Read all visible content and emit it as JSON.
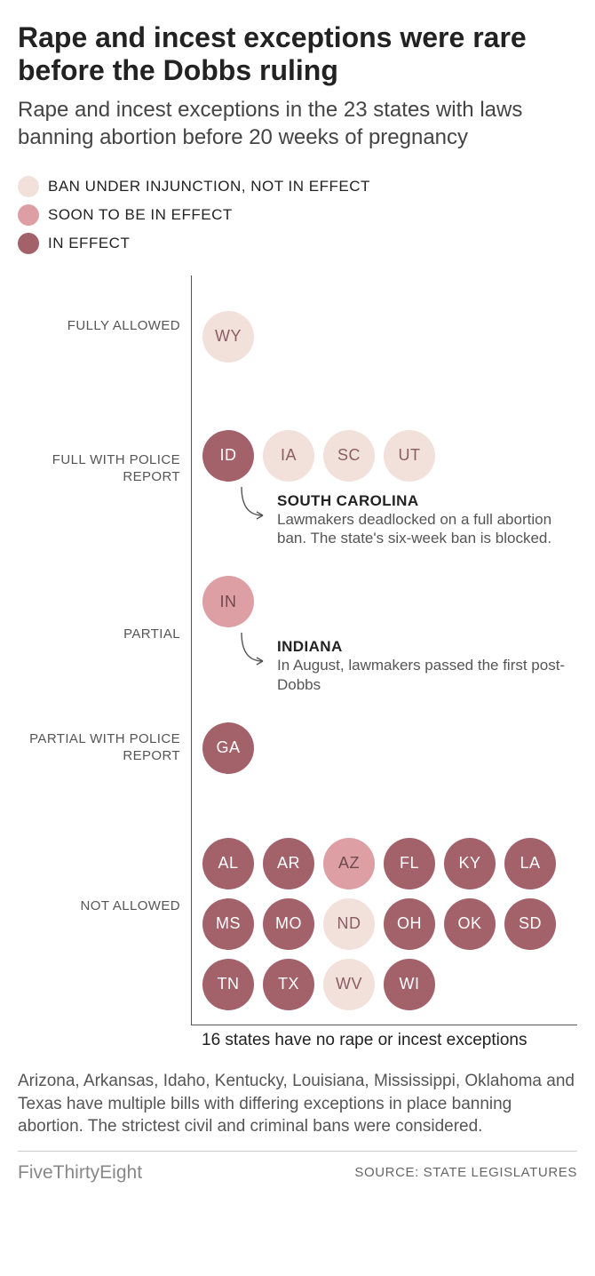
{
  "title": "Rape and incest exceptions were rare before the Dobbs ruling",
  "subtitle": "Rape and incest exceptions in the 23 states with laws banning abortion before 20 weeks of pregnancy",
  "colors": {
    "injunction": "#f2e1db",
    "soon": "#dd9fa4",
    "in_effect": "#a3626a",
    "text_light": "#8b5d63",
    "text_dark": "#ffffff",
    "text_mid": "#6d4a4f"
  },
  "legend": [
    {
      "label": "BAN UNDER INJUNCTION, NOT IN EFFECT",
      "color_key": "injunction"
    },
    {
      "label": "SOON TO BE IN EFFECT",
      "color_key": "soon"
    },
    {
      "label": "IN EFFECT",
      "color_key": "in_effect"
    }
  ],
  "categories": [
    {
      "label": "FULLY ALLOWED",
      "states": [
        {
          "abbr": "WY",
          "status": "injunction"
        }
      ]
    },
    {
      "label": "FULL WITH POLICE REPORT",
      "states": [
        {
          "abbr": "ID",
          "status": "in_effect"
        },
        {
          "abbr": "IA",
          "status": "injunction"
        },
        {
          "abbr": "SC",
          "status": "injunction"
        },
        {
          "abbr": "UT",
          "status": "injunction"
        }
      ]
    },
    {
      "label": "PARTIAL",
      "states": [
        {
          "abbr": "IN",
          "status": "soon"
        }
      ]
    },
    {
      "label": "PARTIAL WITH POLICE REPORT",
      "states": [
        {
          "abbr": "GA",
          "status": "in_effect"
        }
      ]
    },
    {
      "label": "NOT ALLOWED",
      "states": [
        {
          "abbr": "AL",
          "status": "in_effect"
        },
        {
          "abbr": "AR",
          "status": "in_effect"
        },
        {
          "abbr": "AZ",
          "status": "soon"
        },
        {
          "abbr": "FL",
          "status": "in_effect"
        },
        {
          "abbr": "KY",
          "status": "in_effect"
        },
        {
          "abbr": "LA",
          "status": "in_effect"
        },
        {
          "abbr": "MS",
          "status": "in_effect"
        },
        {
          "abbr": "MO",
          "status": "in_effect"
        },
        {
          "abbr": "ND",
          "status": "injunction"
        },
        {
          "abbr": "OH",
          "status": "in_effect"
        },
        {
          "abbr": "OK",
          "status": "in_effect"
        },
        {
          "abbr": "SD",
          "status": "in_effect"
        },
        {
          "abbr": "TN",
          "status": "in_effect"
        },
        {
          "abbr": "TX",
          "status": "in_effect"
        },
        {
          "abbr": "WV",
          "status": "injunction"
        },
        {
          "abbr": "WI",
          "status": "in_effect"
        }
      ]
    }
  ],
  "annotations": {
    "sc": {
      "title": "SOUTH CAROLINA",
      "body": "Lawmakers deadlocked on a full abortion ban. The state's six-week ban is blocked."
    },
    "in": {
      "title": "INDIANA",
      "body": "In August, lawmakers passed the first post-Dobbs"
    }
  },
  "bottom_note": "16 states have no rape or incest exceptions",
  "footnote": "Arizona, Arkansas, Idaho, Kentucky, Louisiana, Mississippi, Oklahoma and Texas have multiple bills with differing exceptions in place banning abortion. The strictest civil and criminal bans were considered.",
  "brand": "FiveThirtyEight",
  "source": "SOURCE: STATE LEGISLATURES",
  "style": {
    "bubble_size": 58,
    "bubble_gap": 10,
    "title_fontsize": 32,
    "subtitle_fontsize": 24,
    "label_fontsize": 15,
    "bubble_fontsize": 18,
    "max_bubbles_per_row": 6
  }
}
